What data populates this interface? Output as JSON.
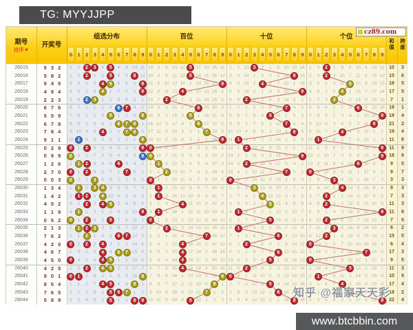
{
  "title": "TG: MYYJJPP",
  "header": {
    "period_label": "期号",
    "sort_label": "排序",
    "sort_icon": "▼",
    "draw_label": "开奖号",
    "sections": [
      {
        "key": "group",
        "label": "组选分布"
      },
      {
        "key": "hundreds",
        "label": "百位"
      },
      {
        "key": "tens",
        "label": "十位"
      },
      {
        "key": "units",
        "label": "个位"
      }
    ],
    "digit_labels": [
      "0",
      "1",
      "2",
      "3",
      "4",
      "5",
      "6",
      "7",
      "8",
      "9"
    ],
    "sum_label": [
      "和",
      "值"
    ],
    "span_label": [
      "跨",
      "度"
    ]
  },
  "logo_text": "cz89.com",
  "watermarks": {
    "zhihu": "知乎 @福家天天彩",
    "site": "www.btcbbin.com"
  },
  "colors": {
    "ball_red": "#bf2a2e",
    "ball_red_border": "#8e1f22",
    "ball_yellow": "#ab9d1c",
    "ball_yellow_border": "#847810",
    "ball_blue": "#3f74c8",
    "ball_blue_border": "#2b57a0",
    "trend_line": "#c56a6c",
    "group_bg": "#e8ecf1",
    "trend_bg": "#f6f4e0",
    "sum_bg": "#faf4cf",
    "span_bg": "#f4f1d8",
    "left_bg": "#fdfdfc"
  },
  "chart_data": {
    "type": "table",
    "title": "3D彩票走势图 (组选分布 / 百位 / 十位 / 个位 / 和值 / 跨度)",
    "rows": [
      {
        "period": "26015",
        "draw": [
          5,
          3,
          2
        ],
        "sum": 10,
        "span": 3
      },
      {
        "period": "26016",
        "draw": [
          5,
          8,
          2
        ],
        "sum": 15,
        "span": 6
      },
      {
        "period": "26017",
        "draw": [
          9,
          4,
          5
        ],
        "sum": 18,
        "span": 5
      },
      {
        "period": "26018",
        "draw": [
          4,
          9,
          4
        ],
        "sum": 17,
        "span": 5
      },
      {
        "period": "26019",
        "draw": [
          2,
          2,
          3
        ],
        "sum": 7,
        "span": 1
      },
      {
        "period": "26020",
        "draw": [
          6,
          7,
          6
        ],
        "sum": 19,
        "span": 1
      },
      {
        "period": "26021",
        "draw": [
          5,
          5,
          9
        ],
        "sum": 19,
        "span": 4
      },
      {
        "period": "26022",
        "draw": [
          6,
          7,
          8
        ],
        "sum": 21,
        "span": 2
      },
      {
        "period": "26023",
        "draw": [
          7,
          8,
          4
        ],
        "sum": 19,
        "span": 4
      },
      {
        "period": "26024",
        "draw": [
          9,
          1,
          1
        ],
        "sum": 11,
        "span": 8
      },
      {
        "period": "26025",
        "draw": [
          0,
          2,
          9
        ],
        "sum": 11,
        "span": 9
      },
      {
        "period": "26026",
        "draw": [
          0,
          9,
          9
        ],
        "sum": 18,
        "span": 9
      },
      {
        "period": "26027",
        "draw": [
          1,
          2,
          6
        ],
        "sum": 9,
        "span": 5
      },
      {
        "period": "26028",
        "draw": [
          2,
          7,
          0
        ],
        "sum": 9,
        "span": 7
      },
      {
        "period": "26029",
        "draw": [
          0,
          0,
          3
        ],
        "sum": 3,
        "span": 3
      },
      {
        "period": "26030",
        "draw": [
          1,
          3,
          4
        ],
        "sum": 8,
        "span": 3
      },
      {
        "period": "26031",
        "draw": [
          1,
          4,
          2
        ],
        "sum": 7,
        "span": 3
      },
      {
        "period": "26032",
        "draw": [
          4,
          5,
          2
        ],
        "sum": 11,
        "span": 3
      },
      {
        "period": "26033",
        "draw": [
          1,
          1,
          9
        ],
        "sum": 11,
        "span": 8
      },
      {
        "period": "26034",
        "draw": [
          0,
          5,
          2
        ],
        "sum": 7,
        "span": 5
      },
      {
        "period": "26035",
        "draw": [
          2,
          1,
          3
        ],
        "sum": 6,
        "span": 2
      },
      {
        "period": "26036",
        "draw": [
          7,
          6,
          2
        ],
        "sum": 15,
        "span": 5
      },
      {
        "period": "26037",
        "draw": [
          4,
          2,
          0
        ],
        "sum": 6,
        "span": 4
      },
      {
        "period": "26038",
        "draw": [
          4,
          6,
          7
        ],
        "sum": 17,
        "span": 3
      },
      {
        "period": "26039",
        "draw": [
          4,
          5,
          0
        ],
        "sum": 9,
        "span": 5
      },
      {
        "period": "26040",
        "draw": [
          4,
          2,
          5
        ],
        "sum": 11,
        "span": 3
      },
      {
        "period": "26041",
        "draw": [
          9,
          0,
          1
        ],
        "sum": 10,
        "span": 9
      },
      {
        "period": "26042",
        "draw": [
          8,
          5,
          4
        ],
        "sum": 17,
        "span": 4
      },
      {
        "period": "26043",
        "draw": [
          7,
          6,
          5
        ],
        "sum": 18,
        "span": 2
      },
      {
        "period": "26044",
        "draw": [
          5,
          8,
          9
        ],
        "sum": 22,
        "span": 4
      }
    ],
    "group_balls": [
      [
        [
          2,
          "r"
        ],
        [
          3,
          "r"
        ],
        [
          5,
          "r"
        ]
      ],
      [
        [
          2,
          "r"
        ],
        [
          5,
          "r"
        ],
        [
          8,
          "r"
        ]
      ],
      [
        [
          4,
          "r"
        ],
        [
          5,
          "y"
        ],
        [
          9,
          "r"
        ]
      ],
      [
        [
          4,
          "y"
        ],
        [
          9,
          "r"
        ]
      ],
      [
        [
          2,
          "b"
        ],
        [
          3,
          "y"
        ]
      ],
      [
        [
          6,
          "b"
        ],
        [
          7,
          "r"
        ]
      ],
      [
        [
          5,
          "y"
        ],
        [
          9,
          "y"
        ]
      ],
      [
        [
          6,
          "y"
        ],
        [
          7,
          "y"
        ],
        [
          8,
          "y"
        ]
      ],
      [
        [
          4,
          "r"
        ],
        [
          7,
          "y"
        ],
        [
          8,
          "y"
        ]
      ],
      [
        [
          1,
          "b"
        ],
        [
          9,
          "y"
        ]
      ],
      [
        [
          0,
          "r"
        ],
        [
          2,
          "r"
        ],
        [
          9,
          "r"
        ]
      ],
      [
        [
          0,
          "y"
        ],
        [
          9,
          "b"
        ]
      ],
      [
        [
          1,
          "y"
        ],
        [
          2,
          "r"
        ],
        [
          6,
          "r"
        ]
      ],
      [
        [
          0,
          "r"
        ],
        [
          2,
          "r"
        ],
        [
          7,
          "r"
        ]
      ],
      [
        [
          0,
          "y"
        ],
        [
          3,
          "y"
        ]
      ],
      [
        [
          1,
          "y"
        ],
        [
          3,
          "y"
        ],
        [
          4,
          "y"
        ]
      ],
      [
        [
          1,
          "r"
        ],
        [
          2,
          "r"
        ],
        [
          4,
          "y"
        ]
      ],
      [
        [
          2,
          "r"
        ],
        [
          4,
          "r"
        ],
        [
          5,
          "y"
        ]
      ],
      [
        [
          1,
          "y"
        ],
        [
          9,
          "r"
        ]
      ],
      [
        [
          0,
          "y"
        ],
        [
          2,
          "r"
        ],
        [
          5,
          "r"
        ]
      ],
      [
        [
          1,
          "y"
        ],
        [
          2,
          "r"
        ],
        [
          3,
          "y"
        ]
      ],
      [
        [
          2,
          "y"
        ],
        [
          6,
          "r"
        ],
        [
          7,
          "r"
        ]
      ],
      [
        [
          0,
          "r"
        ],
        [
          2,
          "r"
        ],
        [
          4,
          "r"
        ]
      ],
      [
        [
          4,
          "r"
        ],
        [
          6,
          "y"
        ],
        [
          7,
          "y"
        ]
      ],
      [
        [
          0,
          "r"
        ],
        [
          4,
          "r"
        ],
        [
          5,
          "y"
        ]
      ],
      [
        [
          2,
          "r"
        ],
        [
          4,
          "y"
        ],
        [
          5,
          "y"
        ]
      ],
      [
        [
          0,
          "r"
        ],
        [
          1,
          "r"
        ],
        [
          9,
          "y"
        ]
      ],
      [
        [
          4,
          "r"
        ],
        [
          5,
          "r"
        ],
        [
          8,
          "y"
        ]
      ],
      [
        [
          5,
          "r"
        ],
        [
          6,
          "r"
        ],
        [
          7,
          "y"
        ]
      ],
      [
        [
          5,
          "r"
        ],
        [
          8,
          "r"
        ],
        [
          9,
          "r"
        ]
      ]
    ],
    "hundreds_colors": [
      "r",
      "r",
      "r",
      "r",
      "r",
      "r",
      "y",
      "y",
      "y",
      "r",
      "r",
      "y",
      "y",
      "y",
      "r",
      "r",
      "r",
      "r",
      "r",
      "r",
      "r",
      "r",
      "r",
      "r",
      "r",
      "r",
      "y",
      "y",
      "y",
      "r"
    ],
    "tens_colors": [
      "r",
      "r",
      "r",
      "r",
      "r",
      "r",
      "r",
      "r",
      "r",
      "r",
      "r",
      "r",
      "r",
      "r",
      "r",
      "y",
      "y",
      "y",
      "r",
      "r",
      "r",
      "r",
      "r",
      "r",
      "r",
      "r",
      "r",
      "r",
      "r",
      "r"
    ],
    "units_colors": [
      "r",
      "r",
      "y",
      "y",
      "y",
      "r",
      "r",
      "r",
      "r",
      "r",
      "r",
      "r",
      "r",
      "r",
      "r",
      "r",
      "r",
      "r",
      "r",
      "r",
      "r",
      "r",
      "r",
      "r",
      "r",
      "r",
      "r",
      "r",
      "r",
      "r"
    ],
    "miss_seeds": {
      "group": [
        1,
        2,
        0,
        0,
        4,
        0,
        4,
        4,
        14,
        11
      ],
      "hundreds": [
        19,
        3,
        8,
        10,
        12,
        0,
        17,
        20,
        25,
        11
      ],
      "tens": [
        2,
        2,
        13,
        0,
        3,
        1,
        5,
        10,
        10,
        14
      ],
      "units": [
        1,
        3,
        0,
        2,
        9,
        6,
        10,
        4,
        14,
        11
      ]
    }
  }
}
